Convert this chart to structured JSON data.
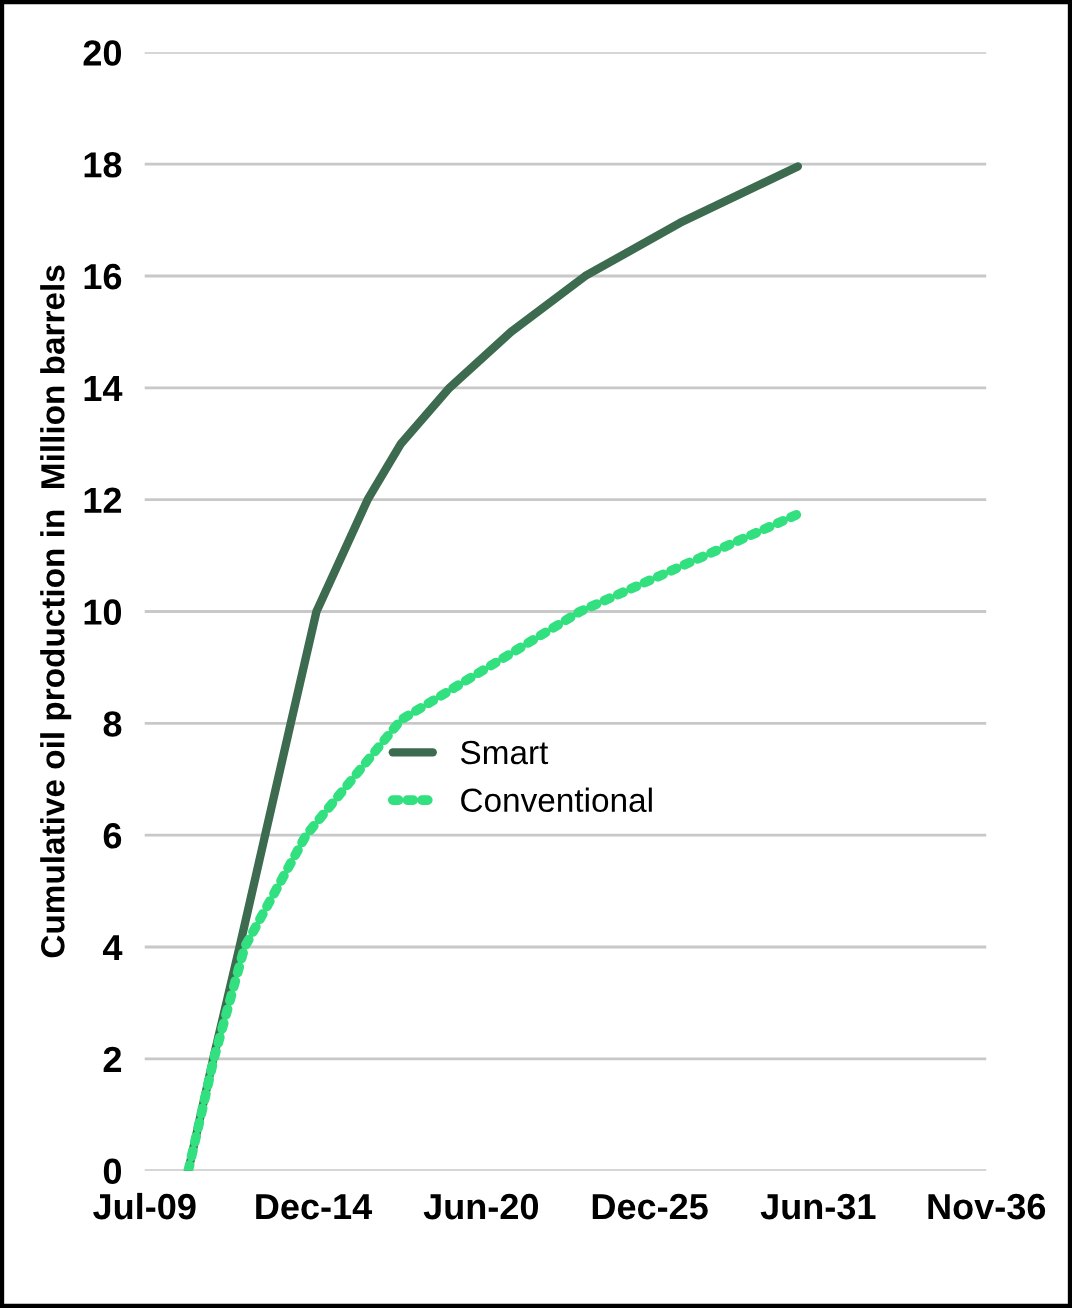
{
  "chart_data": {
    "type": "line",
    "ylabel": "Cumulative oil production in  Million barrels",
    "series": [
      {
        "name": "Smart",
        "color": "#3d6b4f",
        "line_style": "solid",
        "x": [
          "2010-12-01",
          "2011-10-01",
          "2012-08-01",
          "2013-06-01",
          "2014-04-01",
          "2015-02-01",
          "2016-10-01",
          "2017-11-01",
          "2019-06-01",
          "2021-06-01",
          "2023-11-01",
          "2026-12-01",
          "2030-10-01"
        ],
        "values": [
          0,
          2.05,
          4.0,
          6.0,
          8.0,
          10.0,
          12.0,
          13.0,
          14.0,
          15.0,
          16.0,
          16.95,
          17.96
        ]
      },
      {
        "name": "Conventional",
        "color": "#33e07f",
        "line_style": "dotted",
        "x": [
          "2010-12-01",
          "2011-10-01",
          "2012-10-01",
          "2014-10-01",
          "2017-11-01",
          "2023-09-01",
          "2026-12-01",
          "2030-10-01"
        ],
        "values": [
          0,
          2.0,
          4.0,
          6.0,
          8.06,
          10.0,
          10.8,
          11.74
        ]
      }
    ],
    "xlim": [
      "2009-07-01",
      "2036-11-17"
    ],
    "xticks": [
      {
        "value": "2009-07-01",
        "label": "Jul-09"
      },
      {
        "value": "2014-12-22",
        "label": "Dec-14"
      },
      {
        "value": "2020-06-13",
        "label": "Jun-20"
      },
      {
        "value": "2025-12-04",
        "label": "Dec-25"
      },
      {
        "value": "2031-06-01",
        "label": "Jun-31"
      },
      {
        "value": "2036-11-17",
        "label": "Nov-36"
      }
    ],
    "ylim": [
      0,
      20
    ],
    "yticks": [
      0,
      2,
      4,
      6,
      8,
      10,
      12,
      14,
      16,
      18,
      20
    ],
    "grid": "y",
    "legend": "center",
    "marker": "none"
  }
}
